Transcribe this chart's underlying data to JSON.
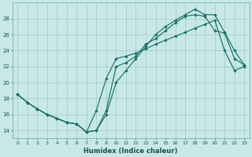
{
  "title": "",
  "xlabel": "Humidex (Indice chaleur)",
  "ylabel": "",
  "bg_color": "#c8e8e8",
  "grid_color": "#a0c8c8",
  "line_color": "#1a7068",
  "xlim": [
    -0.5,
    23.5
  ],
  "ylim": [
    13.0,
    30.0
  ],
  "xticks": [
    0,
    1,
    2,
    3,
    4,
    5,
    6,
    7,
    8,
    9,
    10,
    11,
    12,
    13,
    14,
    15,
    16,
    17,
    18,
    19,
    20,
    21,
    22,
    23
  ],
  "yticks": [
    14,
    16,
    18,
    20,
    22,
    24,
    26,
    28
  ],
  "line1_x": [
    0,
    1,
    2,
    3,
    4,
    5,
    6,
    7,
    8,
    9,
    10,
    11,
    12,
    13,
    14,
    15,
    16,
    17,
    18,
    19,
    20,
    21,
    22,
    23
  ],
  "line1_y": [
    18.5,
    17.5,
    16.7,
    16.0,
    15.5,
    15.0,
    14.8,
    13.8,
    16.5,
    20.5,
    23.0,
    23.3,
    23.7,
    24.2,
    24.8,
    25.3,
    25.8,
    26.3,
    26.8,
    27.3,
    27.8,
    24.0,
    21.5,
    22.0
  ],
  "line2_x": [
    0,
    1,
    2,
    3,
    4,
    5,
    6,
    7,
    8,
    9,
    10,
    11,
    12,
    13,
    14,
    15,
    16,
    17,
    18,
    19,
    20,
    21,
    22,
    23
  ],
  "line2_y": [
    18.5,
    17.5,
    16.7,
    16.0,
    15.5,
    15.0,
    14.8,
    13.8,
    14.0,
    16.0,
    20.0,
    21.5,
    23.0,
    24.5,
    26.0,
    27.0,
    27.8,
    28.5,
    29.2,
    28.5,
    28.5,
    26.3,
    24.0,
    22.2
  ],
  "line3_x": [
    0,
    1,
    2,
    3,
    4,
    5,
    6,
    7,
    8,
    9,
    10,
    11,
    12,
    13,
    14,
    15,
    16,
    17,
    18,
    19,
    20,
    21,
    22,
    23
  ],
  "line3_y": [
    18.5,
    17.5,
    16.7,
    16.0,
    15.5,
    15.0,
    14.8,
    13.8,
    14.0,
    16.5,
    22.0,
    22.5,
    23.3,
    24.8,
    25.5,
    26.5,
    27.5,
    28.3,
    28.5,
    28.3,
    26.5,
    26.2,
    23.0,
    22.2
  ]
}
